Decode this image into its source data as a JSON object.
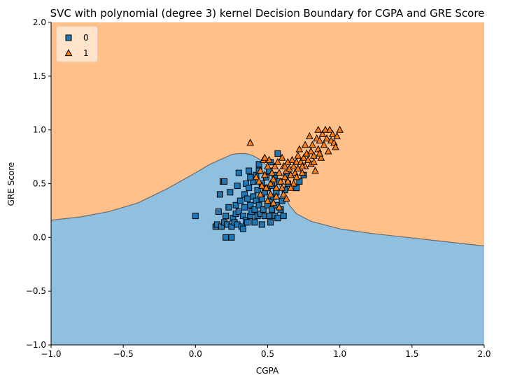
{
  "chart_data": {
    "type": "scatter",
    "title": "SVC with polynomial (degree 3) kernel Decision Boundary for CGPA and GRE Score",
    "xlabel": "CGPA",
    "ylabel": "GRE Score",
    "xlim": [
      -1.0,
      2.0
    ],
    "ylim": [
      -1.0,
      2.0
    ],
    "xticks": [
      "−1.0",
      "−0.5",
      "0.0",
      "0.5",
      "1.0",
      "1.5",
      "2.0"
    ],
    "yticks": [
      "−1.0",
      "−0.5",
      "0.0",
      "0.5",
      "1.0",
      "1.5",
      "2.0"
    ],
    "grid": false,
    "legend_position": "top-left",
    "region_colors": {
      "0": "#8fc0e0",
      "1": "#ffc08a"
    },
    "boundary": {
      "x": [
        -1.0,
        -0.8,
        -0.6,
        -0.4,
        -0.2,
        0.0,
        0.1,
        0.2,
        0.25,
        0.3,
        0.35,
        0.4,
        0.45,
        0.5,
        0.55,
        0.6,
        0.65,
        0.7,
        0.8,
        1.0,
        1.2,
        1.4,
        1.6,
        1.8,
        2.0
      ],
      "y": [
        0.16,
        0.19,
        0.24,
        0.32,
        0.45,
        0.6,
        0.68,
        0.74,
        0.77,
        0.78,
        0.78,
        0.76,
        0.72,
        0.66,
        0.56,
        0.44,
        0.3,
        0.22,
        0.15,
        0.08,
        0.04,
        0.01,
        -0.02,
        -0.05,
        -0.08
      ]
    },
    "series": [
      {
        "name": "0",
        "marker": "square",
        "color": "#1f77b4",
        "points": [
          [
            0.0,
            0.2
          ],
          [
            0.14,
            0.1
          ],
          [
            0.15,
            0.12
          ],
          [
            0.16,
            0.24
          ],
          [
            0.17,
            0.4
          ],
          [
            0.18,
            0.1
          ],
          [
            0.19,
            0.52
          ],
          [
            0.2,
            0.14
          ],
          [
            0.2,
            0.52
          ],
          [
            0.21,
            0.2
          ],
          [
            0.21,
            0.0
          ],
          [
            0.22,
            0.12
          ],
          [
            0.23,
            0.28
          ],
          [
            0.24,
            0.42
          ],
          [
            0.25,
            0.0
          ],
          [
            0.25,
            0.1
          ],
          [
            0.26,
            0.18
          ],
          [
            0.27,
            0.14
          ],
          [
            0.28,
            0.22
          ],
          [
            0.28,
            0.3
          ],
          [
            0.29,
            0.48
          ],
          [
            0.29,
            0.12
          ],
          [
            0.3,
            0.6
          ],
          [
            0.3,
            0.24
          ],
          [
            0.31,
            0.34
          ],
          [
            0.32,
            0.1
          ],
          [
            0.33,
            0.2
          ],
          [
            0.33,
            0.08
          ],
          [
            0.34,
            0.4
          ],
          [
            0.34,
            0.28
          ],
          [
            0.35,
            0.5
          ],
          [
            0.35,
            0.16
          ],
          [
            0.36,
            0.14
          ],
          [
            0.36,
            0.36
          ],
          [
            0.37,
            0.62
          ],
          [
            0.37,
            0.46
          ],
          [
            0.38,
            0.2
          ],
          [
            0.38,
            0.3
          ],
          [
            0.39,
            0.24
          ],
          [
            0.4,
            0.52
          ],
          [
            0.4,
            0.38
          ],
          [
            0.41,
            0.26
          ],
          [
            0.42,
            0.58
          ],
          [
            0.42,
            0.34
          ],
          [
            0.43,
            0.2
          ],
          [
            0.43,
            0.44
          ],
          [
            0.44,
            0.68
          ],
          [
            0.44,
            0.3
          ],
          [
            0.45,
            0.22
          ],
          [
            0.46,
            0.5
          ],
          [
            0.46,
            0.36
          ],
          [
            0.47,
            0.26
          ],
          [
            0.48,
            0.2
          ],
          [
            0.48,
            0.42
          ],
          [
            0.49,
            0.56
          ],
          [
            0.5,
            0.3
          ],
          [
            0.5,
            0.46
          ],
          [
            0.51,
            0.2
          ],
          [
            0.51,
            0.62
          ],
          [
            0.52,
            0.34
          ],
          [
            0.52,
            0.7
          ],
          [
            0.53,
            0.26
          ],
          [
            0.53,
            0.48
          ],
          [
            0.54,
            0.38
          ],
          [
            0.55,
            0.2
          ],
          [
            0.55,
            0.58
          ],
          [
            0.56,
            0.42
          ],
          [
            0.56,
            0.3
          ],
          [
            0.57,
            0.18
          ],
          [
            0.57,
            0.78
          ],
          [
            0.58,
            0.52
          ],
          [
            0.59,
            0.26
          ],
          [
            0.6,
            0.34
          ],
          [
            0.61,
            0.2
          ],
          [
            0.62,
            0.44
          ],
          [
            0.63,
            0.58
          ],
          [
            0.64,
            0.5
          ],
          [
            0.7,
            0.46
          ],
          [
            0.72,
            0.52
          ],
          [
            0.75,
            0.58
          ],
          [
            0.46,
            0.12
          ],
          [
            0.41,
            0.14
          ],
          [
            0.52,
            0.14
          ],
          [
            0.44,
            0.62
          ],
          [
            0.38,
            0.56
          ]
        ]
      },
      {
        "name": "1",
        "marker": "triangle",
        "color": "#ff7f0e",
        "points": [
          [
            0.38,
            0.88
          ],
          [
            0.42,
            0.56
          ],
          [
            0.44,
            0.52
          ],
          [
            0.45,
            0.62
          ],
          [
            0.46,
            0.48
          ],
          [
            0.47,
            0.72
          ],
          [
            0.48,
            0.58
          ],
          [
            0.49,
            0.46
          ],
          [
            0.5,
            0.66
          ],
          [
            0.51,
            0.72
          ],
          [
            0.52,
            0.5
          ],
          [
            0.53,
            0.6
          ],
          [
            0.54,
            0.54
          ],
          [
            0.55,
            0.66
          ],
          [
            0.56,
            0.46
          ],
          [
            0.57,
            0.7
          ],
          [
            0.58,
            0.6
          ],
          [
            0.59,
            0.52
          ],
          [
            0.6,
            0.74
          ],
          [
            0.61,
            0.66
          ],
          [
            0.62,
            0.56
          ],
          [
            0.63,
            0.62
          ],
          [
            0.64,
            0.7
          ],
          [
            0.65,
            0.64
          ],
          [
            0.66,
            0.58
          ],
          [
            0.67,
            0.72
          ],
          [
            0.68,
            0.66
          ],
          [
            0.69,
            0.6
          ],
          [
            0.7,
            0.7
          ],
          [
            0.71,
            0.76
          ],
          [
            0.71,
            0.64
          ],
          [
            0.72,
            0.82
          ],
          [
            0.73,
            0.7
          ],
          [
            0.74,
            0.6
          ],
          [
            0.75,
            0.74
          ],
          [
            0.76,
            0.86
          ],
          [
            0.76,
            0.66
          ],
          [
            0.77,
            0.78
          ],
          [
            0.78,
            0.72
          ],
          [
            0.79,
            0.94
          ],
          [
            0.8,
            0.8
          ],
          [
            0.8,
            0.68
          ],
          [
            0.81,
            0.86
          ],
          [
            0.82,
            0.76
          ],
          [
            0.83,
            0.62
          ],
          [
            0.84,
            0.92
          ],
          [
            0.85,
            1.0
          ],
          [
            0.85,
            0.82
          ],
          [
            0.86,
            0.9
          ],
          [
            0.87,
            0.74
          ],
          [
            0.88,
            0.96
          ],
          [
            0.89,
            0.86
          ],
          [
            0.9,
            1.0
          ],
          [
            0.91,
            0.92
          ],
          [
            0.92,
            0.8
          ],
          [
            0.93,
            1.0
          ],
          [
            0.94,
            0.9
          ],
          [
            0.95,
            0.96
          ],
          [
            0.96,
            0.88
          ],
          [
            0.97,
            0.84
          ],
          [
            0.98,
            0.94
          ],
          [
            1.0,
            1.0
          ],
          [
            0.48,
            0.74
          ],
          [
            0.52,
            0.4
          ],
          [
            0.56,
            0.38
          ],
          [
            0.6,
            0.46
          ],
          [
            0.64,
            0.52
          ],
          [
            0.68,
            0.5
          ],
          [
            0.7,
            0.56
          ],
          [
            0.74,
            0.66
          ],
          [
            0.82,
            0.7
          ],
          [
            0.86,
            0.78
          ],
          [
            0.58,
            0.28
          ],
          [
            0.61,
            0.4
          ],
          [
            0.63,
            0.36
          ],
          [
            0.66,
            0.46
          ],
          [
            0.54,
            0.32
          ],
          [
            0.45,
            0.4
          ],
          [
            0.5,
            0.34
          ],
          [
            0.62,
            0.66
          ]
        ]
      }
    ]
  }
}
